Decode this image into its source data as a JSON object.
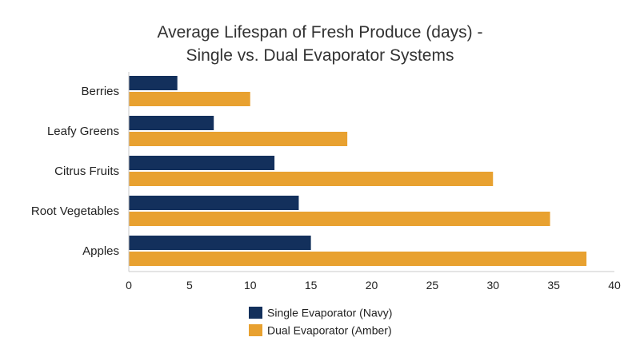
{
  "chart_data": {
    "type": "bar",
    "orientation": "horizontal",
    "title_lines": [
      "Average Lifespan of Fresh Produce (days) -",
      "Single vs. Dual Evaporator Systems"
    ],
    "xlabel": "",
    "ylabel": "",
    "categories": [
      "Berries",
      "Leafy Greens",
      "Citrus Fruits",
      "Root Vegetables",
      "Apples"
    ],
    "series": [
      {
        "name": "Single Evaporator (Navy)",
        "color": "#13305c",
        "values": [
          4,
          7,
          12,
          14,
          15
        ]
      },
      {
        "name": "Dual Evaporator (Amber)",
        "color": "#e8a130",
        "values": [
          10,
          18,
          30,
          34.7,
          37.7
        ]
      }
    ],
    "xlim": [
      0,
      40
    ],
    "xticks": [
      "0",
      "5",
      "10",
      "15",
      "20",
      "25",
      "30",
      "35",
      "40"
    ],
    "grid": false,
    "legend_position": "bottom-center"
  }
}
